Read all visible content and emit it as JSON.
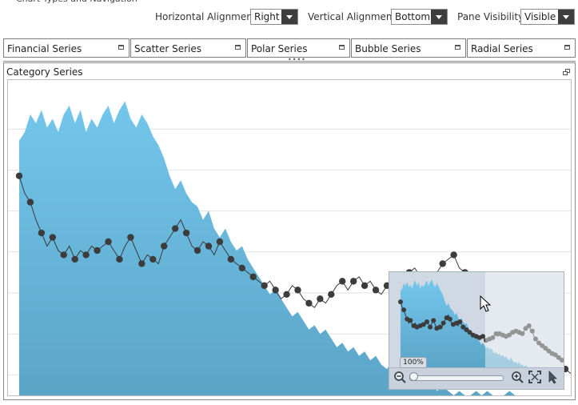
{
  "toolbar": {
    "horizontal_alignment": {
      "label": "Horizontal Alignment",
      "value": "Right"
    },
    "vertical_alignment": {
      "label": "Vertical Alignment",
      "value": "Bottom"
    },
    "pane_visibility": {
      "label": "Pane Visibility",
      "value": "Visible"
    }
  },
  "tabs": [
    {
      "label": "Financial Series"
    },
    {
      "label": "Scatter Series"
    },
    {
      "label": "Polar Series"
    },
    {
      "label": "Bubble Series"
    },
    {
      "label": "Radial Series"
    }
  ],
  "pane": {
    "title": "Category Series"
  },
  "preview": {
    "zoom_label": "100%"
  },
  "icons": {
    "zoom_out": "zoom-out-icon",
    "zoom_in": "zoom-in-icon",
    "fit": "fit-to-screen-icon",
    "pointer": "pointer-icon",
    "restore": "restore-icon",
    "maximize": "maximize-icon"
  },
  "colors": {
    "area_top": "#74c6ec",
    "area_bottom": "#5ba5c7",
    "line": "#3a3a3a",
    "marker": "#3c3c3c"
  },
  "chart_data": {
    "type": "area",
    "series": [
      {
        "values": [
          58,
          60,
          64,
          62,
          65,
          61,
          63,
          60,
          64,
          66,
          62,
          65,
          60,
          63,
          61,
          64,
          66,
          62,
          65,
          67,
          63,
          61,
          64,
          62,
          59,
          57,
          54,
          50,
          47,
          49,
          46,
          44,
          43,
          40,
          42,
          38,
          36,
          38,
          35,
          33,
          34,
          31,
          29,
          27,
          25,
          23,
          24,
          22,
          20,
          18,
          19,
          17,
          15,
          16,
          14,
          15,
          13,
          11,
          12,
          10,
          11,
          9,
          10,
          8,
          9,
          7,
          6,
          8,
          6,
          4,
          5,
          3,
          5,
          2,
          3,
          1,
          2,
          1,
          0,
          1,
          0,
          0,
          1,
          0,
          1,
          0,
          0,
          0,
          1,
          0,
          0,
          0,
          0,
          0,
          0,
          0,
          0,
          0,
          0,
          0
        ]
      },
      {
        "values": [
          50,
          46,
          44,
          40,
          37,
          34,
          36,
          33,
          32,
          34,
          31,
          33,
          32,
          34,
          33,
          34,
          35,
          33,
          31,
          34,
          36,
          33,
          30,
          32,
          31,
          30,
          34,
          36,
          38,
          40,
          37,
          34,
          33,
          35,
          34,
          32,
          35,
          33,
          31,
          30,
          29,
          28,
          27,
          26,
          25,
          26,
          24,
          22,
          23,
          25,
          24,
          22,
          21,
          20,
          22,
          21,
          23,
          25,
          26,
          24,
          26,
          27,
          25,
          26,
          24,
          23,
          25,
          26,
          27,
          26,
          28,
          29,
          27,
          25,
          26,
          28,
          30,
          31,
          32,
          29,
          28,
          24,
          22,
          20,
          19,
          18,
          17,
          16,
          15,
          14,
          13,
          12,
          11,
          12,
          10,
          9,
          8,
          7,
          6,
          5
        ]
      }
    ]
  }
}
